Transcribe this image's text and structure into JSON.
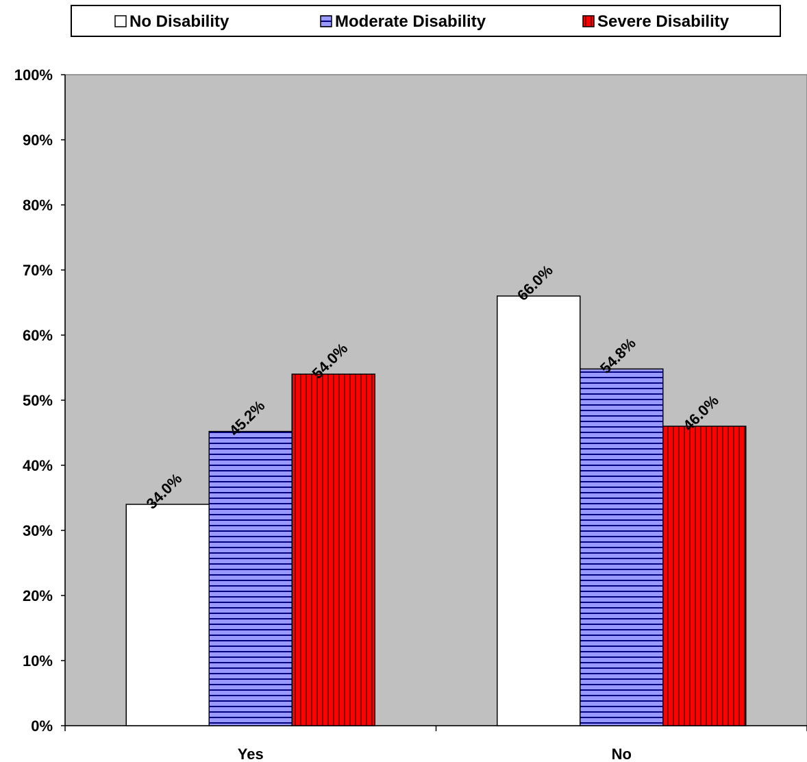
{
  "chart_data": {
    "type": "bar",
    "categories": [
      "Yes",
      "No"
    ],
    "series": [
      {
        "name": "No Disability",
        "values": [
          34.0,
          66.0
        ],
        "fill": "#ffffff",
        "pattern": "none"
      },
      {
        "name": "Moderate Disability",
        "values": [
          45.2,
          54.8
        ],
        "fill": "#9999ff",
        "pattern": "horizontal-lines"
      },
      {
        "name": "Severe Disability",
        "values": [
          54.0,
          46.0
        ],
        "fill": "#ff0000",
        "pattern": "vertical-lines"
      }
    ],
    "data_labels": [
      [
        "34.0%",
        "66.0%"
      ],
      [
        "45.2%",
        "54.8%"
      ],
      [
        "54.0%",
        "46.0%"
      ]
    ],
    "y_ticks": [
      "0%",
      "10%",
      "20%",
      "30%",
      "40%",
      "50%",
      "60%",
      "70%",
      "80%",
      "90%",
      "100%"
    ],
    "ylim": [
      0,
      100
    ],
    "title": "",
    "xlabel": "",
    "ylabel": "",
    "legend_position": "top",
    "grid": false,
    "plot_background": "#c0c0c0"
  }
}
